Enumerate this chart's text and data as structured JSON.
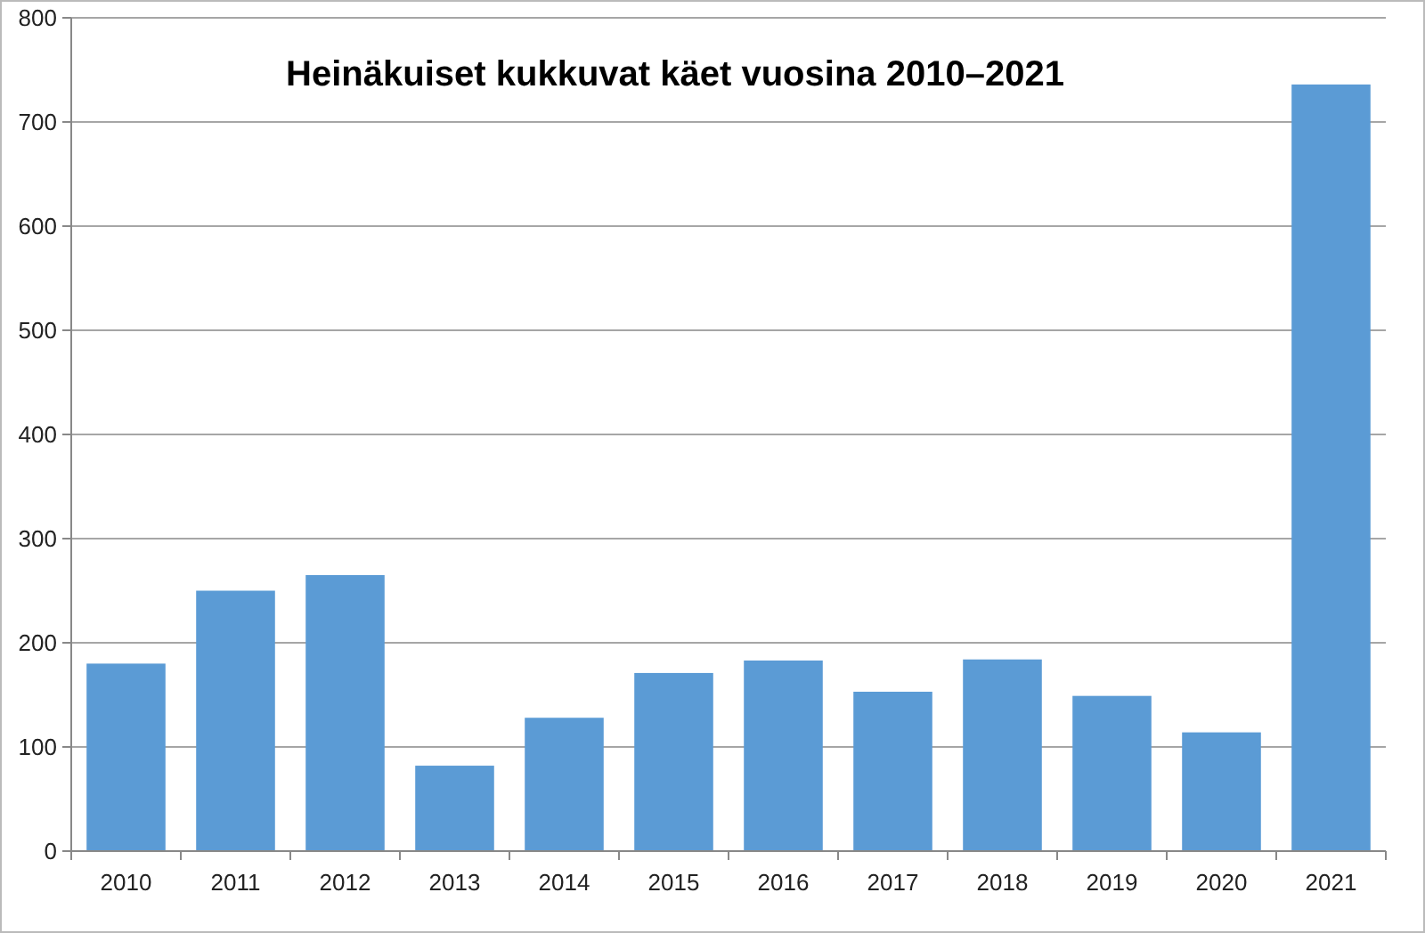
{
  "chart_data": {
    "type": "bar",
    "title": "Heinäkuiset kukkuvat käet vuosina 2010–2021",
    "categories": [
      "2010",
      "2011",
      "2012",
      "2013",
      "2014",
      "2015",
      "2016",
      "2017",
      "2018",
      "2019",
      "2020",
      "2021"
    ],
    "values": [
      180,
      250,
      265,
      82,
      128,
      171,
      183,
      153,
      184,
      149,
      114,
      736
    ],
    "color": "#5b9bd5",
    "ylim": [
      0,
      800
    ],
    "yticks": [
      0,
      100,
      200,
      300,
      400,
      500,
      600,
      700,
      800
    ],
    "grid": "y"
  }
}
